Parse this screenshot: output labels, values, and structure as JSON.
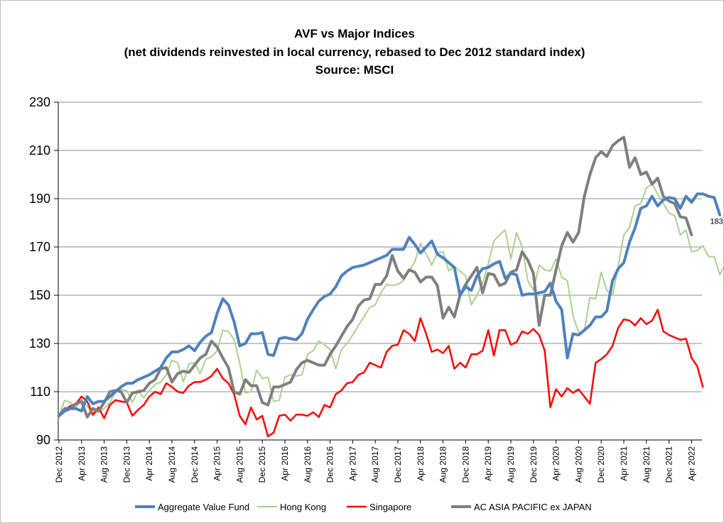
{
  "chart_data": {
    "type": "line",
    "title": [
      "AVF vs Major  Indices",
      "(net dividends reinvested in local currency, rebased to Dec 2012 standard  index)",
      "Source: MSCI"
    ],
    "xlabel": "",
    "ylabel": "",
    "ylim": [
      90,
      230
    ],
    "yticks": [
      90,
      110,
      130,
      150,
      170,
      190,
      210,
      230
    ],
    "grid": true,
    "legend_position": "bottom",
    "x_tick_labels": [
      "Dec 2012",
      "Apr 2013",
      "Aug 2013",
      "Dec 2013",
      "Apr 2014",
      "Aug 2014",
      "Dec 2014",
      "Apr 2015",
      "Aug 2015",
      "Dec 2015",
      "Apr 2016",
      "Aug 2016",
      "Dec 2016",
      "Apr 2017",
      "Aug 2017",
      "Dec 2017",
      "Apr 2018",
      "Aug 2018",
      "Dec 2018",
      "Apr 2019",
      "Aug 2019",
      "Dec 2019",
      "Apr 2020",
      "Aug 2020",
      "Dec 2020",
      "Apr 2021",
      "Aug 2021",
      "Dec 2021",
      "Apr 2022"
    ],
    "x_start": "2012-12",
    "x_end": "2022-07",
    "series": [
      {
        "name": "Aggregate Value Fund",
        "color": "#4f81bd",
        "width": 4,
        "values": [
          100,
          102,
          103,
          103,
          102,
          108,
          105,
          106,
          106,
          108,
          110,
          112,
          113.5,
          113.5,
          115,
          116,
          117,
          118.5,
          120,
          124,
          126.5,
          126.5,
          127.5,
          129,
          127,
          130.5,
          133,
          134.5,
          142.5,
          148.5,
          146,
          139,
          129,
          130,
          134,
          134,
          134.5,
          125.5,
          125,
          132,
          132.5,
          132,
          131.5,
          134,
          140,
          144,
          147.5,
          149.5,
          150.5,
          153.5,
          158,
          160,
          161.5,
          162,
          162.5,
          163.5,
          164.5,
          165.5,
          166.5,
          169,
          169,
          169,
          174,
          171,
          167.5,
          170,
          172.5,
          167,
          165.5,
          163.5,
          161.5,
          150,
          153.5,
          152,
          158,
          161,
          161.5,
          163,
          164,
          157,
          159,
          158.5,
          150,
          150.5,
          150.5,
          151,
          151.5,
          155,
          147.5,
          144,
          124,
          134,
          133.5,
          135.5,
          137.5,
          141,
          141,
          143.5,
          156,
          161,
          163.5,
          172,
          178,
          186,
          187,
          191,
          187,
          189.5,
          190.5,
          190,
          186,
          191,
          188.5,
          192,
          192,
          191,
          190.5,
          183.32
        ]
      },
      {
        "name": "Hong Kong",
        "color": "#a9d18e",
        "width": 2,
        "values": [
          100,
          106.5,
          105.5,
          103.5,
          106.5,
          104,
          100,
          102,
          103,
          105.5,
          110,
          111,
          110.5,
          105.5,
          110.5,
          107.5,
          110.5,
          113,
          114,
          117,
          123,
          122,
          114,
          121.5,
          122,
          117.5,
          123.5,
          124.5,
          127,
          135.5,
          135,
          131.5,
          122,
          109.5,
          110,
          119,
          115.5,
          116,
          106,
          106.5,
          116,
          117,
          116.5,
          117,
          125.5,
          127,
          131,
          129.5,
          127.5,
          119.5,
          127.5,
          130,
          133.5,
          137.5,
          141,
          145,
          146,
          151,
          154.5,
          154,
          154.5,
          156,
          160,
          164,
          171.5,
          167,
          162.5,
          167.5,
          168,
          160,
          162,
          160,
          158,
          146,
          150,
          155,
          163,
          172.5,
          175,
          177,
          165,
          176,
          170,
          156,
          152,
          162.5,
          160.5,
          160,
          165,
          157.5,
          156,
          141.5,
          134.5,
          135,
          149,
          148.5,
          159.5,
          152,
          150,
          162,
          175,
          178,
          187,
          188,
          194.5,
          196,
          192,
          188,
          184,
          183,
          175,
          177,
          168,
          168.5,
          170.5,
          166,
          166,
          158.5,
          163,
          165
        ]
      },
      {
        "name": "Singapore",
        "color": "#ff0000",
        "width": 2.5,
        "values": [
          100,
          102.5,
          104,
          105,
          108,
          106,
          100.5,
          103.5,
          99,
          104.5,
          106.5,
          106,
          105.5,
          100,
          102.5,
          104.5,
          108,
          110,
          109,
          113.5,
          112,
          110,
          109.5,
          112.5,
          114,
          114,
          115,
          116.5,
          119.5,
          115.5,
          113.5,
          109,
          100,
          96.5,
          103.5,
          98.5,
          100,
          91.5,
          93,
          100,
          100.5,
          98,
          100.5,
          100.5,
          100,
          101.5,
          99.5,
          104.5,
          103.5,
          109,
          110.5,
          113.5,
          114,
          117,
          118,
          122,
          121,
          120,
          126.5,
          129,
          129.5,
          135.5,
          134,
          131,
          140.5,
          134,
          126.5,
          127.5,
          126,
          129,
          119.5,
          122,
          120,
          125.5,
          125.5,
          127,
          135.5,
          125,
          135.5,
          135.5,
          129.5,
          130.5,
          135,
          134,
          136,
          133.5,
          127,
          103.5,
          111,
          108,
          111.5,
          109.5,
          111,
          108,
          105,
          122,
          123.5,
          125.5,
          129,
          136.5,
          140,
          139.5,
          137.5,
          140.5,
          138,
          139.5,
          144,
          135,
          133.5,
          132.5,
          131.5,
          132,
          124,
          120.5,
          112
        ]
      },
      {
        "name": "AC ASIA PACIFIC ex JAPAN",
        "color": "#7f7f7f",
        "width": 4,
        "values": [
          100,
          103,
          103,
          105,
          106,
          99.5,
          103,
          102,
          105.5,
          110,
          110.5,
          110,
          105.5,
          109.5,
          110,
          110.5,
          113.5,
          115,
          119.5,
          120,
          114,
          117.5,
          118.5,
          118,
          121,
          124,
          125.5,
          131,
          128.5,
          124,
          120,
          110,
          109,
          115,
          112.5,
          112.5,
          105.5,
          104.5,
          112,
          112,
          113,
          114,
          119,
          122,
          123,
          122,
          121,
          121,
          125.5,
          129,
          133,
          137,
          140,
          145.5,
          148,
          148.5,
          154.5,
          154.5,
          158,
          166.5,
          160,
          157,
          160.5,
          159.5,
          155.5,
          157.5,
          157.5,
          154,
          140.5,
          145,
          141,
          150,
          154.5,
          158,
          161.5,
          151,
          159,
          158.5,
          154,
          155,
          159.5,
          160.5,
          168,
          164.5,
          159,
          137.5,
          150,
          150,
          160.5,
          170.5,
          176,
          172,
          176,
          191,
          200,
          207,
          209.5,
          207.5,
          212,
          214,
          215.5,
          203,
          207,
          200,
          201,
          196,
          198.5,
          191,
          189,
          188,
          182.5,
          182,
          175
        ]
      }
    ],
    "annotations": [
      {
        "text": "183.32",
        "series": "Aggregate Value Fund",
        "point": "last"
      }
    ]
  }
}
